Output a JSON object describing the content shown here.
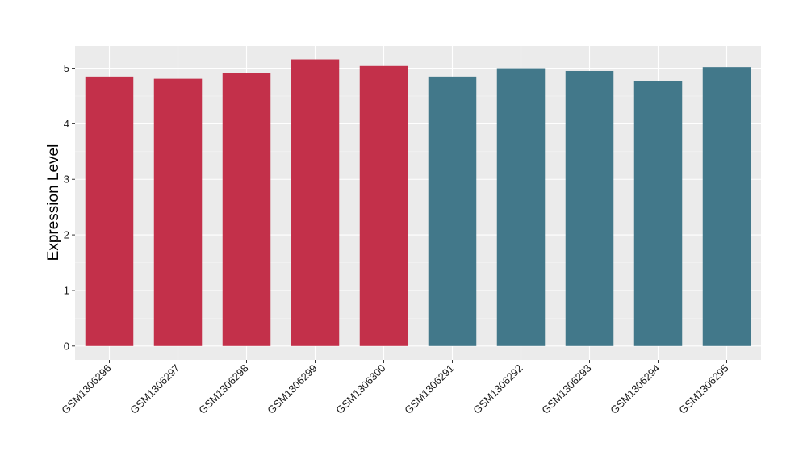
{
  "chart_data": {
    "type": "bar",
    "title": "",
    "xlabel": "",
    "ylabel": "Expression Level",
    "ylim": [
      -0.25,
      5.4
    ],
    "yticks": [
      0,
      1,
      2,
      3,
      4,
      5
    ],
    "grid": true,
    "categories": [
      "GSM1306296",
      "GSM1306297",
      "GSM1306298",
      "GSM1306299",
      "GSM1306300",
      "GSM1306291",
      "GSM1306292",
      "GSM1306293",
      "GSM1306294",
      "GSM1306295"
    ],
    "values": [
      4.85,
      4.81,
      4.92,
      5.16,
      5.04,
      4.85,
      5.0,
      4.95,
      4.77,
      5.02
    ],
    "bar_colors": [
      "#c3304a",
      "#c3304a",
      "#c3304a",
      "#c3304a",
      "#c3304a",
      "#42788a",
      "#42788a",
      "#42788a",
      "#42788a",
      "#42788a"
    ]
  }
}
